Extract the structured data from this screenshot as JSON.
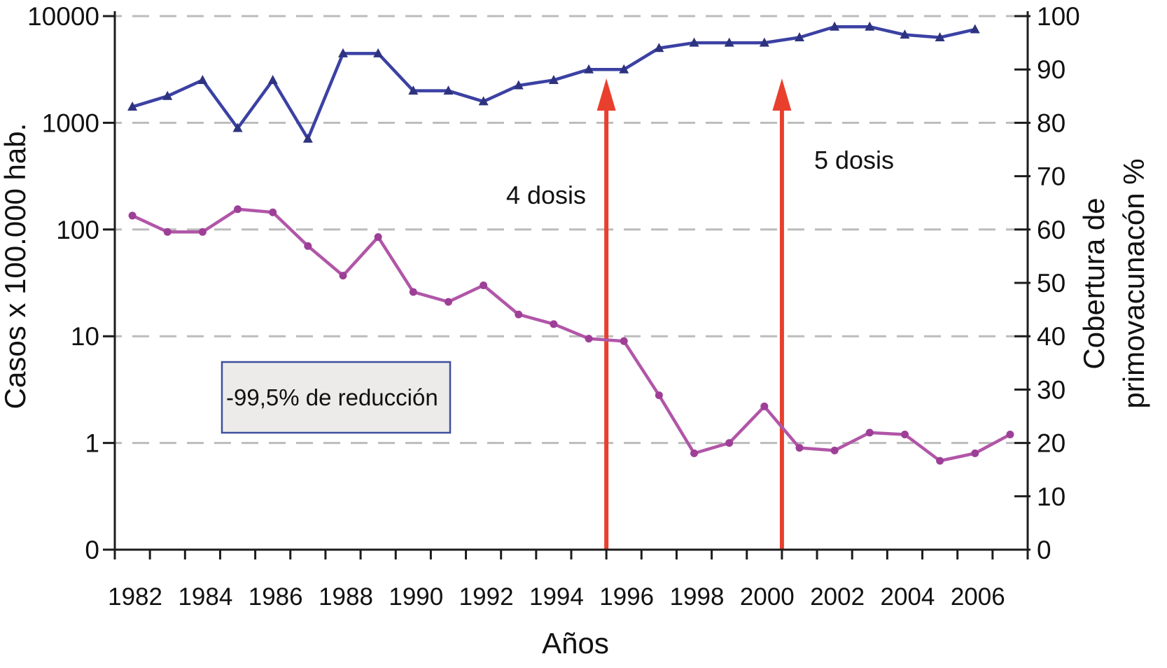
{
  "chart_data": {
    "type": "line",
    "title": "",
    "xlabel": "Años",
    "ylabel_left": "Casos x 100.000 hab.",
    "ylabel_right_line1": "Cobertura de",
    "ylabel_right_line2": "primovacunacón %",
    "left_axis": {
      "scale": "log",
      "tick_labels": [
        "10000",
        "1000",
        "100",
        "10",
        "1",
        "0"
      ]
    },
    "right_axis": {
      "scale": "linear",
      "range": [
        0,
        100
      ],
      "tick_labels": [
        "100",
        "90",
        "80",
        "70",
        "60",
        "50",
        "40",
        "30",
        "20",
        "10",
        "0"
      ]
    },
    "x_axis": {
      "range_years": [
        1982,
        2007
      ],
      "tick_labels": [
        "1982",
        "1984",
        "1986",
        "1988",
        "1990",
        "1992",
        "1994",
        "1996",
        "1998",
        "2000",
        "2002",
        "2004",
        "2006"
      ]
    },
    "grid": {
      "on": true,
      "at_right_axis_values": [
        100,
        80,
        60,
        40,
        20
      ]
    },
    "series": [
      {
        "name": "casos",
        "axis": "left",
        "marker": "circle",
        "color": "#b156a8",
        "marker_color": "#9d3f97",
        "x": [
          1982,
          1983,
          1984,
          1985,
          1986,
          1987,
          1988,
          1989,
          1990,
          1991,
          1992,
          1993,
          1994,
          1995,
          1996,
          1997,
          1998,
          1999,
          2000,
          2001,
          2002,
          2003,
          2004,
          2005,
          2006,
          2007
        ],
        "values": [
          135,
          95,
          95,
          155,
          145,
          70,
          37,
          85,
          26,
          21,
          30,
          16,
          13,
          9.5,
          9,
          2.8,
          0.8,
          1.0,
          2.2,
          0.9,
          0.85,
          1.25,
          1.2,
          0.68,
          0.8,
          1.2
        ]
      },
      {
        "name": "cobertura",
        "axis": "right",
        "marker": "triangle",
        "color": "#3b41a3",
        "marker_color": "#2e337f",
        "x": [
          1982,
          1983,
          1984,
          1985,
          1986,
          1987,
          1988,
          1989,
          1990,
          1991,
          1992,
          1993,
          1994,
          1995,
          1996,
          1997,
          1998,
          1999,
          2000,
          2001,
          2002,
          2003,
          2004,
          2005,
          2006
        ],
        "values": [
          83,
          85,
          88,
          79,
          88,
          77,
          93,
          93,
          86,
          86,
          84,
          87,
          88,
          90,
          90,
          94,
          95,
          95,
          95,
          96,
          98,
          98,
          96.5,
          96,
          97.5
        ]
      }
    ],
    "annotations": {
      "arrows": [
        {
          "label": "4 dosis",
          "year": 1995.5,
          "color": "#e8402d"
        },
        {
          "label": "5 dosis",
          "year": 2000.5,
          "color": "#e8402d"
        }
      ],
      "reduction_box": {
        "text": "-99,5% de reducción"
      }
    },
    "colors": {
      "cases_line": "#b156a8",
      "cases_marker": "#9d3f97",
      "coverage_line": "#3b41a3",
      "coverage_marker": "#2e337f",
      "arrow_red": "#e8402d",
      "gridline": "#bcbcbc",
      "axis": "#1c1c1c",
      "box_fill": "#ecebe9",
      "box_border": "#3f4f9e"
    }
  }
}
